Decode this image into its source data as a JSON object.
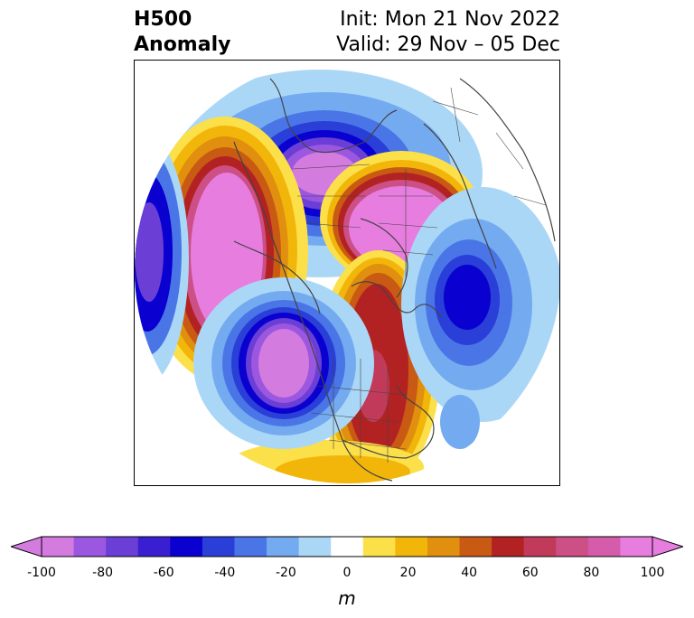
{
  "header": {
    "title_line1": "H500",
    "title_line2": "Anomaly",
    "init": "Init: Mon 21 Nov 2022",
    "valid": "Valid: 29 Nov – 05 Dec"
  },
  "colorbar": {
    "unit": "m",
    "ticks": [
      "-100",
      "-80",
      "-60",
      "-40",
      "-20",
      "0",
      "20",
      "40",
      "60",
      "80",
      "100"
    ],
    "levels": [
      -100,
      -90,
      -80,
      -70,
      -60,
      -50,
      -40,
      -30,
      -20,
      -10,
      10,
      20,
      30,
      40,
      50,
      60,
      70,
      80,
      90,
      100
    ],
    "colors": [
      "#d47be0",
      "#9b57e0",
      "#6b3fd6",
      "#3a1fd0",
      "#0a00d0",
      "#2a3ed8",
      "#4a75e6",
      "#74aaf0",
      "#abd7f7",
      "#ffffff",
      "#fce04a",
      "#f2b60a",
      "#e0900e",
      "#c85a14",
      "#b22222",
      "#c23a5a",
      "#cc4f86",
      "#d45cab",
      "#e87de0"
    ],
    "extend_low_color": "#d47be0",
    "extend_high_color": "#e87de0"
  },
  "map": {
    "projection": "north-polar-stereographic",
    "anomaly_centers": [
      {
        "region": "Hudson Bay / Baffin",
        "sign": "negative"
      },
      {
        "region": "Northeast Pacific",
        "sign": "positive"
      },
      {
        "region": "Western United States",
        "sign": "negative"
      },
      {
        "region": "Arctic / Siberia",
        "sign": "positive"
      },
      {
        "region": "Central Canada to Eastern US",
        "sign": "positive"
      },
      {
        "region": "North Atlantic",
        "sign": "negative"
      }
    ]
  }
}
